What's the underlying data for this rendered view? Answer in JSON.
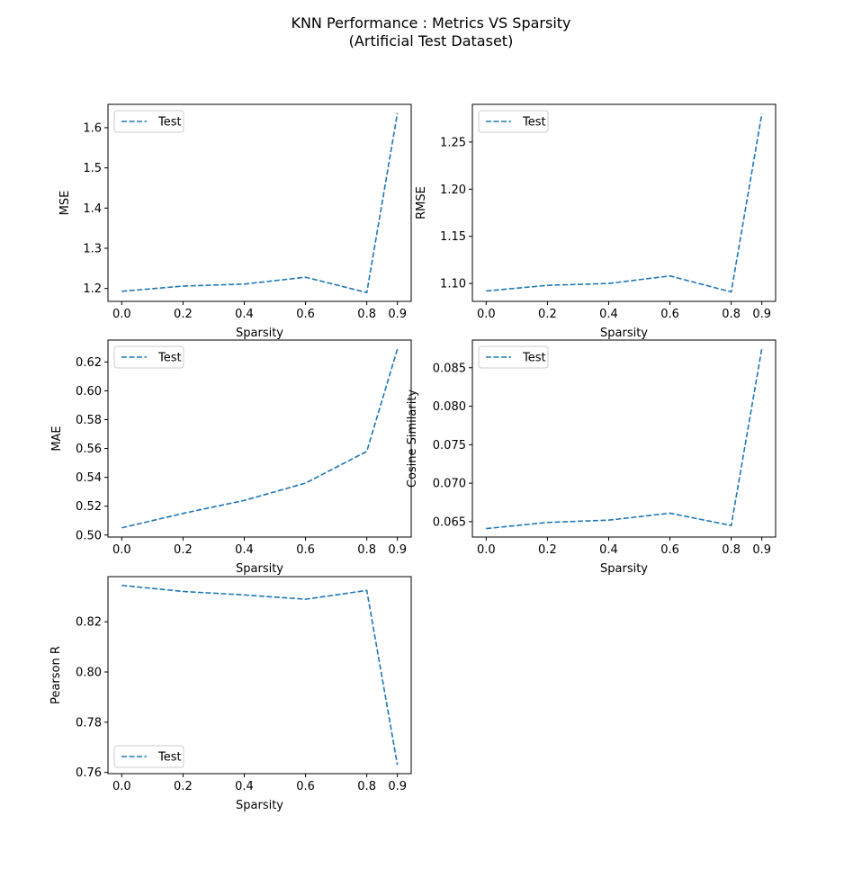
{
  "figure": {
    "title_line1": "KNN Performance : Metrics VS Sparsity",
    "title_line2": "(Artificial Test Dataset)"
  },
  "colors": {
    "series": "#1f77b4",
    "axis": "#000000",
    "legend_border": "#cccccc"
  },
  "chart_data": [
    {
      "type": "line",
      "title": "",
      "xlabel": "Sparsity",
      "ylabel": "MSE",
      "x": [
        0.0,
        0.2,
        0.4,
        0.6,
        0.8,
        0.9
      ],
      "series": [
        {
          "name": "Test",
          "values": [
            1.193,
            1.206,
            1.211,
            1.228,
            1.19,
            1.636
          ],
          "style": "dashed"
        }
      ],
      "xlim": [
        -0.045,
        0.945
      ],
      "ylim": [
        1.168,
        1.658
      ],
      "xticks": [
        0.0,
        0.2,
        0.4,
        0.6,
        0.8,
        0.9
      ],
      "xtick_labels": [
        "0.0",
        "0.2",
        "0.4",
        "0.6",
        "0.8",
        "0.9"
      ],
      "yticks": [
        1.2,
        1.3,
        1.4,
        1.5,
        1.6
      ],
      "ytick_labels": [
        "1.2",
        "1.3",
        "1.4",
        "1.5",
        "1.6"
      ],
      "legend": "upper-left",
      "grid": false
    },
    {
      "type": "line",
      "title": "",
      "xlabel": "Sparsity",
      "ylabel": "RMSE",
      "x": [
        0.0,
        0.2,
        0.4,
        0.6,
        0.8,
        0.9
      ],
      "series": [
        {
          "name": "Test",
          "values": [
            1.092,
            1.098,
            1.1,
            1.108,
            1.091,
            1.28
          ],
          "style": "dashed"
        }
      ],
      "xlim": [
        -0.045,
        0.945
      ],
      "ylim": [
        1.081,
        1.29
      ],
      "xticks": [
        0.0,
        0.2,
        0.4,
        0.6,
        0.8,
        0.9
      ],
      "xtick_labels": [
        "0.0",
        "0.2",
        "0.4",
        "0.6",
        "0.8",
        "0.9"
      ],
      "yticks": [
        1.1,
        1.15,
        1.2,
        1.25
      ],
      "ytick_labels": [
        "1.10",
        "1.15",
        "1.20",
        "1.25"
      ],
      "legend": "upper-left",
      "grid": false
    },
    {
      "type": "line",
      "title": "",
      "xlabel": "Sparsity",
      "ylabel": "MAE",
      "x": [
        0.0,
        0.2,
        0.4,
        0.6,
        0.8,
        0.9
      ],
      "series": [
        {
          "name": "Test",
          "values": [
            0.505,
            0.515,
            0.524,
            0.536,
            0.558,
            0.629
          ],
          "style": "dashed"
        }
      ],
      "xlim": [
        -0.045,
        0.945
      ],
      "ylim": [
        0.4986,
        0.6352
      ],
      "xticks": [
        0.0,
        0.2,
        0.4,
        0.6,
        0.8,
        0.9
      ],
      "xtick_labels": [
        "0.0",
        "0.2",
        "0.4",
        "0.6",
        "0.8",
        "0.9"
      ],
      "yticks": [
        0.5,
        0.52,
        0.54,
        0.56,
        0.58,
        0.6,
        0.62
      ],
      "ytick_labels": [
        "0.50",
        "0.52",
        "0.54",
        "0.56",
        "0.58",
        "0.60",
        "0.62"
      ],
      "legend": "upper-left",
      "grid": false
    },
    {
      "type": "line",
      "title": "",
      "xlabel": "Sparsity",
      "ylabel": "Cosine Similarity",
      "x": [
        0.0,
        0.2,
        0.4,
        0.6,
        0.8,
        0.9
      ],
      "series": [
        {
          "name": "Test",
          "values": [
            0.0641,
            0.0649,
            0.0652,
            0.0661,
            0.0645,
            0.0875
          ],
          "style": "dashed"
        }
      ],
      "xlim": [
        -0.045,
        0.945
      ],
      "ylim": [
        0.063,
        0.0886
      ],
      "xticks": [
        0.0,
        0.2,
        0.4,
        0.6,
        0.8,
        0.9
      ],
      "xtick_labels": [
        "0.0",
        "0.2",
        "0.4",
        "0.6",
        "0.8",
        "0.9"
      ],
      "yticks": [
        0.065,
        0.07,
        0.075,
        0.08,
        0.085
      ],
      "ytick_labels": [
        "0.065",
        "0.070",
        "0.075",
        "0.080",
        "0.085"
      ],
      "legend": "upper-left",
      "grid": false
    },
    {
      "type": "line",
      "title": "",
      "xlabel": "Sparsity",
      "ylabel": "Pearson R",
      "x": [
        0.0,
        0.2,
        0.4,
        0.6,
        0.8,
        0.9
      ],
      "series": [
        {
          "name": "Test",
          "values": [
            0.8345,
            0.8321,
            0.8307,
            0.829,
            0.8325,
            0.763
          ],
          "style": "dashed"
        }
      ],
      "xlim": [
        -0.045,
        0.945
      ],
      "ylim": [
        0.7595,
        0.838
      ],
      "xticks": [
        0.0,
        0.2,
        0.4,
        0.6,
        0.8,
        0.9
      ],
      "xtick_labels": [
        "0.0",
        "0.2",
        "0.4",
        "0.6",
        "0.8",
        "0.9"
      ],
      "yticks": [
        0.76,
        0.78,
        0.8,
        0.82
      ],
      "ytick_labels": [
        "0.76",
        "0.78",
        "0.80",
        "0.82"
      ],
      "legend": "lower-left",
      "grid": false
    }
  ]
}
